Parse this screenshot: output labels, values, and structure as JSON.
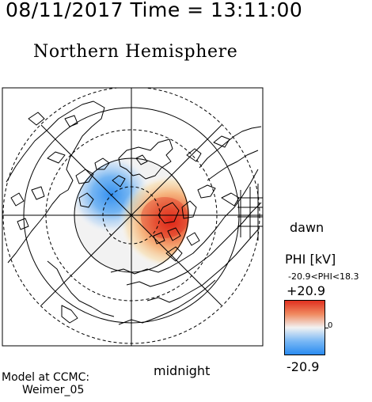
{
  "header": {
    "timestamp": "08/11/2017 Time = 13:11:00",
    "title": "Northern Hemisphere"
  },
  "map": {
    "orientation": {
      "right": "dawn",
      "bottom": "midnight"
    },
    "model": {
      "line1": "Model at CCMC:",
      "line2": "Weimer_05"
    },
    "potential": {
      "label": "PHI [kV]",
      "range_text": "-20.9<PHI<18.3",
      "max_label": "+20.9",
      "zero_label": "0",
      "min_label": "-20.9",
      "min_value": -20.9,
      "max_value": 18.3
    },
    "colors": {
      "positive": "#e03020",
      "negative": "#2a8bf0",
      "neutral": "#f2f2f2",
      "coastline": "#000000",
      "grid": "#000000"
    }
  }
}
